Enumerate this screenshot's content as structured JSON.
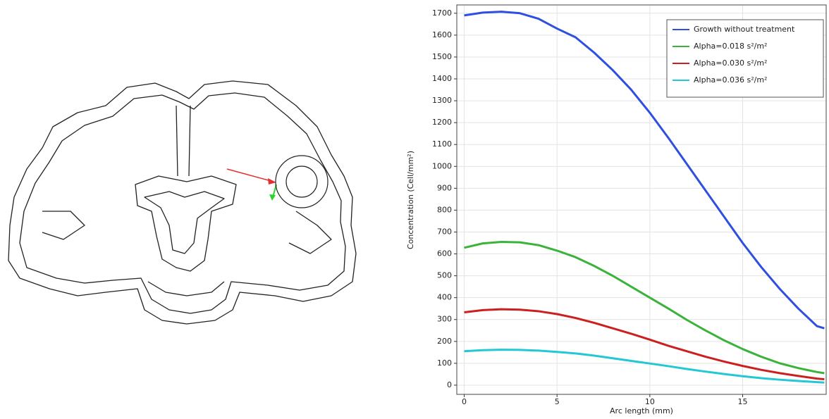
{
  "chart_data": {
    "type": "line",
    "xlabel": "Arc length (mm)",
    "ylabel": "Concentration (Cell/mm²)",
    "x": [
      0,
      1,
      2,
      3,
      4,
      5,
      6,
      7,
      8,
      9,
      10,
      11,
      12,
      13,
      14,
      15,
      16,
      17,
      18,
      19,
      19.4
    ],
    "series": [
      {
        "name": "Growth without treatment",
        "color": "#2f4fe0",
        "values": [
          1690,
          1703,
          1707,
          1700,
          1675,
          1630,
          1590,
          1520,
          1440,
          1350,
          1245,
          1130,
          1010,
          890,
          770,
          650,
          540,
          440,
          350,
          270,
          260
        ]
      },
      {
        "name": "Alpha=0.018 s²/m²",
        "color": "#3bb33b",
        "values": [
          628,
          648,
          655,
          653,
          640,
          615,
          585,
          545,
          500,
          450,
          400,
          350,
          298,
          250,
          205,
          165,
          130,
          100,
          78,
          60,
          55
        ]
      },
      {
        "name": "Alpha=0.030 s²/m²",
        "color": "#cc1f1f",
        "values": [
          333,
          343,
          347,
          345,
          338,
          325,
          307,
          285,
          260,
          235,
          208,
          180,
          155,
          130,
          108,
          88,
          70,
          55,
          42,
          30,
          27
        ]
      },
      {
        "name": "Alpha=0.036 s²/m²",
        "color": "#22c8d4",
        "values": [
          155,
          160,
          162,
          161,
          158,
          152,
          145,
          135,
          123,
          111,
          99,
          87,
          74,
          62,
          51,
          41,
          32,
          25,
          19,
          14,
          12
        ]
      }
    ],
    "xlim": [
      -0.4,
      19.5
    ],
    "ylim": [
      -42,
      1738
    ],
    "xticks": [
      0,
      5,
      10,
      15
    ],
    "yticks": [
      0,
      100,
      200,
      300,
      400,
      500,
      600,
      700,
      800,
      900,
      1000,
      1100,
      1200,
      1300,
      1400,
      1500,
      1600,
      1700
    ],
    "grid": true,
    "legend": "upper right"
  }
}
